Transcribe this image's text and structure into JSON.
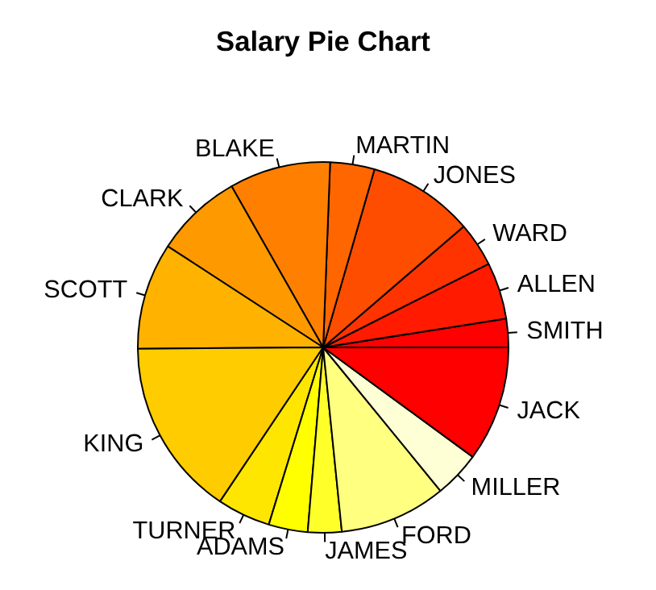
{
  "chart_data": {
    "type": "pie",
    "title": "Salary Pie Chart",
    "categories": [
      "SMITH",
      "ALLEN",
      "WARD",
      "JONES",
      "MARTIN",
      "BLAKE",
      "CLARK",
      "SCOTT",
      "KING",
      "TURNER",
      "ADAMS",
      "JAMES",
      "FORD",
      "MILLER",
      "JACK"
    ],
    "values": [
      2.48,
      4.96,
      3.87,
      9.22,
      3.87,
      8.83,
      7.59,
      9.3,
      15.49,
      4.65,
      3.41,
      2.94,
      9.3,
      4.03,
      10.06
    ],
    "colors": [
      "#ff0000",
      "#ff1a00",
      "#ff3300",
      "#ff4d00",
      "#ff6600",
      "#ff8000",
      "#ff9900",
      "#ffb300",
      "#ffcc00",
      "#ffe600",
      "#ffff00",
      "#ffff2a",
      "#ffff80",
      "#ffffd5",
      "#ff0000"
    ]
  }
}
